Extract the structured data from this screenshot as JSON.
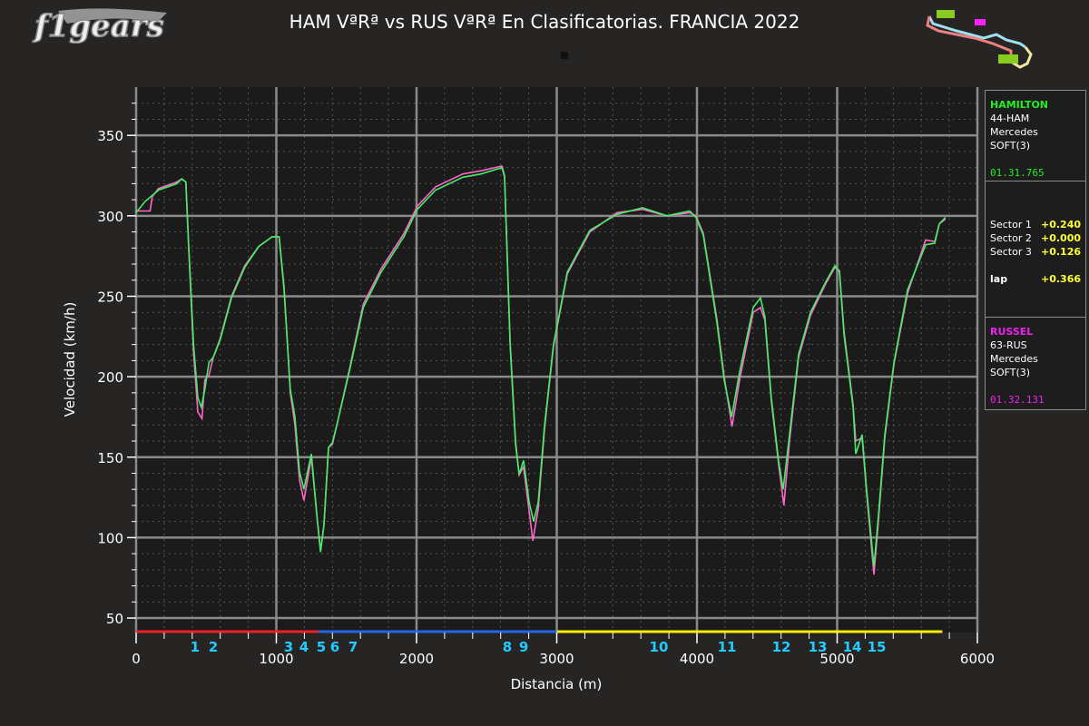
{
  "title": "HAM VªRª vs RUS VªRª En Clasificatorias. FRANCIA 2022",
  "logo_text": "f1gears",
  "chart_data": {
    "type": "line",
    "title": "HAM VªRª vs RUS VªRª En Clasificatorias. FRANCIA 2022",
    "xlabel": "Distancia (m)",
    "ylabel": "Velocidad (km/h)",
    "xlim": [
      0,
      6000
    ],
    "ylim": [
      41,
      380
    ],
    "xticks": [
      0,
      1000,
      2000,
      3000,
      4000,
      5000,
      6000
    ],
    "yticks": [
      50,
      100,
      150,
      200,
      250,
      300,
      350
    ],
    "grid": true,
    "series": [
      {
        "driver": "HAM",
        "color": "#44ee66",
        "x": [
          0,
          65,
          160,
          290,
          325,
          355,
          375,
          410,
          440,
          465,
          490,
          520,
          550,
          600,
          680,
          775,
          875,
          970,
          1020,
          1055,
          1100,
          1133,
          1165,
          1197,
          1250,
          1290,
          1315,
          1340,
          1372,
          1400,
          1437,
          1520,
          1620,
          1747,
          1910,
          2005,
          2136,
          2330,
          2460,
          2610,
          2628,
          2667,
          2706,
          2732,
          2763,
          2803,
          2835,
          2868,
          2913,
          2977,
          3075,
          3236,
          3430,
          3612,
          3786,
          3948,
          3993,
          4045,
          4142,
          4194,
          4247,
          4304,
          4401,
          4453,
          4485,
          4530,
          4583,
          4615,
          4660,
          4725,
          4810,
          4919,
          4984,
          5016,
          5049,
          5113,
          5133,
          5178,
          5210,
          5262,
          5294,
          5340,
          5405,
          5502,
          5631,
          5696,
          5728,
          5773
        ],
        "y": [
          302,
          309,
          316,
          320,
          323,
          321,
          282,
          220,
          187,
          181,
          192,
          209,
          212,
          223,
          249,
          268,
          281,
          287,
          287,
          254,
          192,
          175,
          141,
          130,
          152,
          113,
          91,
          108,
          156,
          159,
          172,
          203,
          243,
          265,
          287,
          304,
          316,
          324,
          326,
          330,
          324,
          220,
          158,
          139,
          148,
          122,
          110,
          122,
          170,
          220,
          265,
          291,
          301,
          305,
          300,
          303,
          299,
          288,
          234,
          198,
          175,
          203,
          243,
          249,
          237,
          187,
          147,
          130,
          164,
          214,
          240,
          259,
          269,
          265,
          226,
          181,
          152,
          164,
          130,
          82,
          113,
          164,
          209,
          254,
          282,
          283,
          295,
          299
        ]
      },
      {
        "driver": "RUS",
        "color": "#ff66cc",
        "x": [
          0,
          100,
          115,
          160,
          290,
          325,
          355,
          375,
          410,
          440,
          470,
          490,
          520,
          550,
          600,
          680,
          775,
          875,
          970,
          1020,
          1055,
          1100,
          1133,
          1165,
          1197,
          1250,
          1290,
          1315,
          1340,
          1372,
          1400,
          1437,
          1520,
          1620,
          1747,
          1910,
          2005,
          2136,
          2330,
          2460,
          2610,
          2628,
          2667,
          2706,
          2732,
          2763,
          2830,
          2868,
          2913,
          2977,
          3075,
          3236,
          3430,
          3612,
          3786,
          3948,
          3993,
          4045,
          4142,
          4194,
          4250,
          4304,
          4401,
          4453,
          4485,
          4530,
          4583,
          4620,
          4660,
          4725,
          4810,
          4919,
          4984,
          5016,
          5049,
          5113,
          5133,
          5178,
          5210,
          5262,
          5294,
          5340,
          5405,
          5502,
          5631,
          5696,
          5728,
          5773
        ],
        "y": [
          303,
          303,
          312,
          317,
          321,
          323,
          321,
          280,
          215,
          178,
          174,
          198,
          201,
          212,
          224,
          250,
          269,
          281,
          287,
          287,
          256,
          190,
          170,
          136,
          123,
          150,
          113,
          92,
          108,
          156,
          158,
          172,
          204,
          245,
          267,
          289,
          306,
          318,
          326,
          328,
          331,
          325,
          222,
          160,
          139,
          144,
          98,
          118,
          168,
          219,
          264,
          290,
          302,
          304,
          300,
          302,
          300,
          289,
          236,
          200,
          169,
          198,
          240,
          243,
          235,
          185,
          145,
          120,
          160,
          212,
          238,
          258,
          268,
          266,
          228,
          183,
          160,
          162,
          128,
          77,
          110,
          162,
          208,
          252,
          285,
          284,
          295,
          298
        ]
      }
    ],
    "sectors": [
      {
        "from": 0,
        "to": 1300,
        "color": "#ee2222"
      },
      {
        "from": 1300,
        "to": 3000,
        "color": "#2266ee"
      },
      {
        "from": 3000,
        "to": 5750,
        "color": "#ffee00"
      }
    ],
    "corners": [
      {
        "label": "1",
        "x": 420
      },
      {
        "label": "2",
        "x": 550
      },
      {
        "label": "3",
        "x": 1087
      },
      {
        "label": "4",
        "x": 1197
      },
      {
        "label": "5",
        "x": 1320
      },
      {
        "label": "6",
        "x": 1417
      },
      {
        "label": "7",
        "x": 1547
      },
      {
        "label": "8",
        "x": 2647
      },
      {
        "label": "9",
        "x": 2764
      },
      {
        "label": "10",
        "x": 3728
      },
      {
        "label": "11",
        "x": 4214
      },
      {
        "label": "12",
        "x": 4602
      },
      {
        "label": "13",
        "x": 4861
      },
      {
        "label": "14",
        "x": 5107
      },
      {
        "label": "15",
        "x": 5282
      }
    ]
  },
  "panel": {
    "driver1": {
      "name": "HAMILTON",
      "code": "44-HAM",
      "team": "Mercedes",
      "tyre": "SOFT(3)",
      "laptime": "01.31.765",
      "color": "#22ee22"
    },
    "deltas": {
      "s1_label": "Sector 1",
      "s1": "+0.240",
      "s2_label": "Sector 2",
      "s2": "+0.000",
      "s3_label": "Sector 3",
      "s3": "+0.126",
      "lap_label": "lap",
      "lap": "+0.366"
    },
    "driver2": {
      "name": "RUSSEL",
      "code": "63-RUS",
      "team": "Mercedes",
      "tyre": "SOFT(3)",
      "laptime": "01.32.131",
      "color": "#ee22ee"
    }
  }
}
